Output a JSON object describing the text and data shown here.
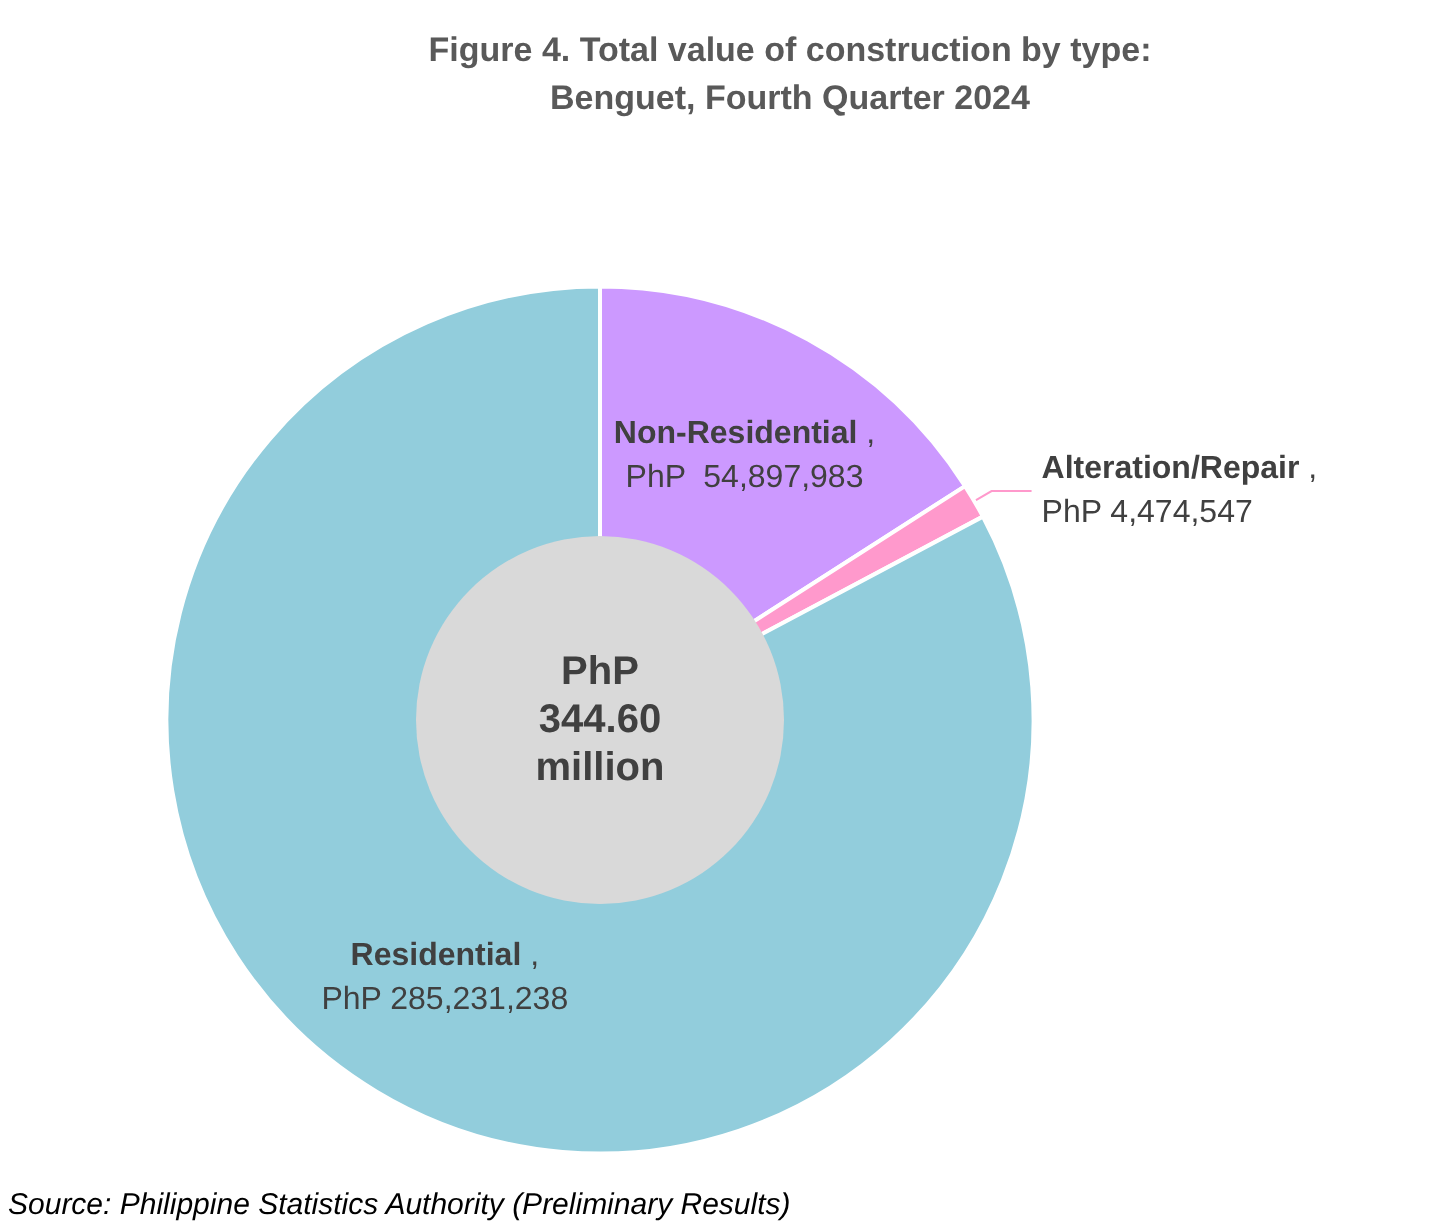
{
  "chart_data": {
    "type": "donut",
    "title": "Figure 4. Total value of construction by type:\nBenguet, Fourth Quarter 2024",
    "categories": [
      "Non-Residential",
      "Alteration/Repair",
      "Residential"
    ],
    "values": [
      54897983,
      4474547,
      285231238
    ],
    "colors": [
      "#cc99ff",
      "#ff99cc",
      "#92cddc"
    ],
    "value_labels": [
      ",\nPhP  54,897,983",
      ",\nPhP 4,474,547",
      ",\nPhP 285,231,238"
    ],
    "annotations": [
      "PhP 344.60 million",
      "Source: Philippine Statistics Authority (Preliminary Results)"
    ],
    "legend": false
  }
}
